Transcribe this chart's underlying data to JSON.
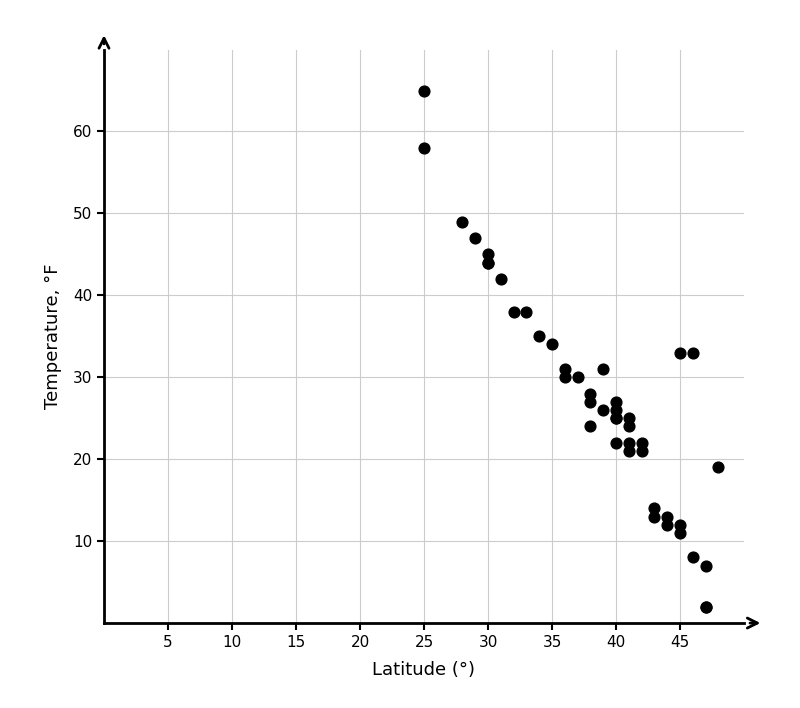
{
  "title": "",
  "xlabel": "Latitude (°)",
  "ylabel": "Temperature, °F",
  "xlim": [
    0,
    50
  ],
  "ylim": [
    0,
    70
  ],
  "xticks": [
    5,
    10,
    15,
    20,
    25,
    30,
    35,
    40,
    45
  ],
  "yticks": [
    10,
    20,
    30,
    40,
    50,
    60
  ],
  "scatter_x": [
    25,
    25,
    28,
    29,
    30,
    30,
    30,
    31,
    32,
    33,
    34,
    35,
    36,
    36,
    37,
    38,
    38,
    38,
    39,
    39,
    40,
    40,
    40,
    40,
    40,
    41,
    41,
    41,
    41,
    42,
    42,
    43,
    43,
    44,
    44,
    45,
    45,
    46,
    47,
    47,
    47,
    48,
    45,
    46
  ],
  "scatter_y": [
    65,
    58,
    49,
    47,
    44,
    44,
    45,
    42,
    38,
    38,
    35,
    34,
    31,
    30,
    30,
    28,
    27,
    24,
    31,
    26,
    27,
    26,
    25,
    25,
    22,
    22,
    21,
    24,
    25,
    21,
    22,
    14,
    13,
    13,
    12,
    12,
    11,
    8,
    7,
    2,
    2,
    19,
    33,
    33
  ],
  "marker_size": 60,
  "marker_color": "#000000",
  "background_color": "#ffffff",
  "grid_color": "#cccccc"
}
